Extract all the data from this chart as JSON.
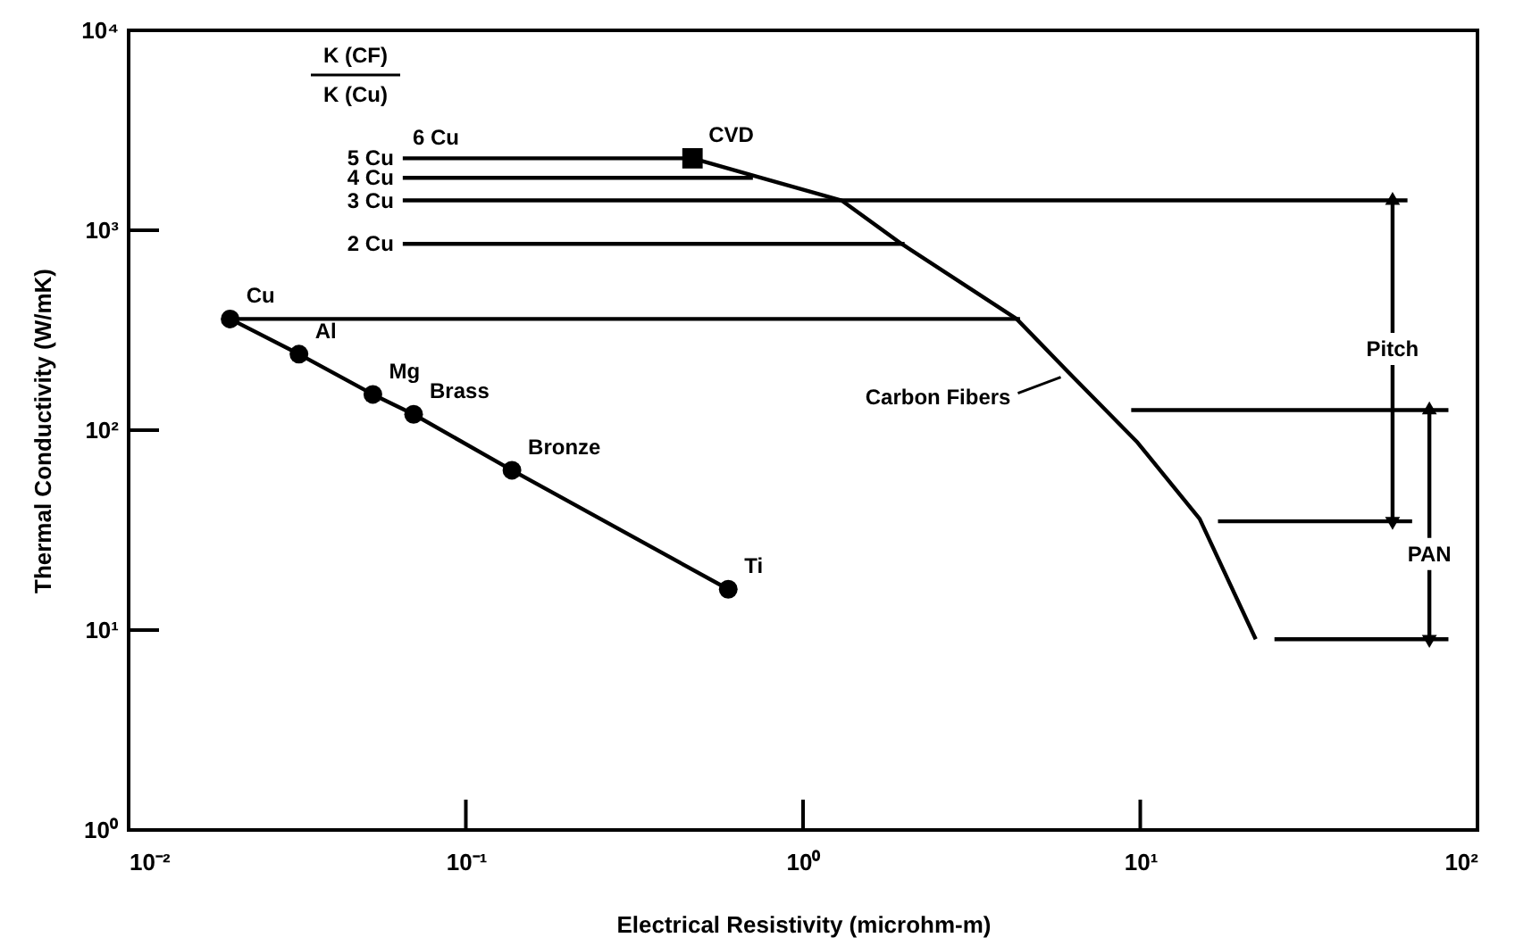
{
  "chart_data": {
    "type": "line",
    "xlabel": "Electrical Resistivity (microhm-m)",
    "ylabel": "Thermal Conductivity (W/mK)",
    "xlim": [
      0.01,
      100
    ],
    "ylim": [
      1,
      10000
    ],
    "log": "xy",
    "grid": false,
    "xticks": [
      {
        "value": 0.01,
        "label": "10⁻²"
      },
      {
        "value": 0.1,
        "label": "10⁻¹"
      },
      {
        "value": 1,
        "label": "10⁰"
      },
      {
        "value": 10,
        "label": "10¹"
      },
      {
        "value": 100,
        "label": "10²"
      }
    ],
    "yticks": [
      {
        "value": 1,
        "label": "10⁰"
      },
      {
        "value": 10,
        "label": "10¹"
      },
      {
        "value": 100,
        "label": "10²"
      },
      {
        "value": 1000,
        "label": "10³"
      },
      {
        "value": 10000,
        "label": "10⁴"
      }
    ],
    "series": [
      {
        "marker": "circle",
        "color": "#000000",
        "x": [
          0.02,
          0.032,
          0.053,
          0.07,
          0.137,
          0.6
        ],
        "values": [
          360,
          240,
          151,
          120,
          63,
          16
        ]
      },
      {
        "name": "Carbon Fibers",
        "color": "#000000",
        "x": [
          0.47,
          0.71,
          1.3,
          1.95,
          4.3,
          6.1,
          9.8,
          15,
          22
        ],
        "values": [
          2290,
          1880,
          1410,
          860,
          360,
          196,
          87,
          36,
          9
        ]
      },
      {
        "type": "scatter",
        "marker": "square",
        "color": "#000000",
        "x": [
          0.47
        ],
        "values": [
          2290
        ]
      },
      {
        "name": "5 Cu",
        "color": "#000000",
        "x": [
          0.065,
          0.47
        ],
        "values": [
          2290,
          2290
        ]
      },
      {
        "name": "4 Cu",
        "color": "#000000",
        "x": [
          0.065,
          0.71
        ],
        "values": [
          1830,
          1830
        ]
      },
      {
        "name": "3 Cu",
        "color": "#000000",
        "x": [
          0.065,
          62
        ],
        "values": [
          1410,
          1410
        ]
      },
      {
        "name": "2 Cu",
        "color": "#000000",
        "x": [
          0.065,
          2.0
        ],
        "values": [
          855,
          855
        ]
      },
      {
        "color": "#000000",
        "x": [
          0.02,
          4.4
        ],
        "values": [
          360,
          360
        ]
      },
      {
        "color": "#000000",
        "x": [
          17,
          64
        ],
        "values": [
          35,
          35
        ]
      },
      {
        "color": "#000000",
        "x": [
          9.4,
          82
        ],
        "values": [
          126,
          126
        ]
      },
      {
        "color": "#000000",
        "x": [
          25,
          82
        ],
        "values": [
          9.0,
          9.0
        ]
      },
      {
        "marker": "triangle",
        "color": "#000000",
        "x": [
          56,
          56
        ],
        "values": [
          1410,
          35
        ]
      },
      {
        "marker": "triangle",
        "color": "#000000",
        "x": [
          72,
          72
        ],
        "values": [
          126,
          9.0
        ]
      }
    ],
    "annotations": [
      "K (CF)",
      "K (Cu)",
      "6 Cu",
      {
        "text": "Cu",
        "x": 0.02,
        "y": 360
      },
      {
        "text": "Al",
        "x": 0.032,
        "y": 240
      },
      {
        "text": "Mg",
        "x": 0.053,
        "y": 151
      },
      {
        "text": "Brass",
        "x": 0.07,
        "y": 120
      },
      {
        "text": "Bronze",
        "x": 0.137,
        "y": 63
      },
      {
        "text": "Ti",
        "x": 0.6,
        "y": 16
      },
      {
        "text": "CVD",
        "x": 0.47,
        "y": 2290
      },
      {
        "text": "Pitch",
        "x": 56,
        "y": 255
      },
      {
        "text": "PAN",
        "x": 72,
        "y": 24
      }
    ]
  }
}
